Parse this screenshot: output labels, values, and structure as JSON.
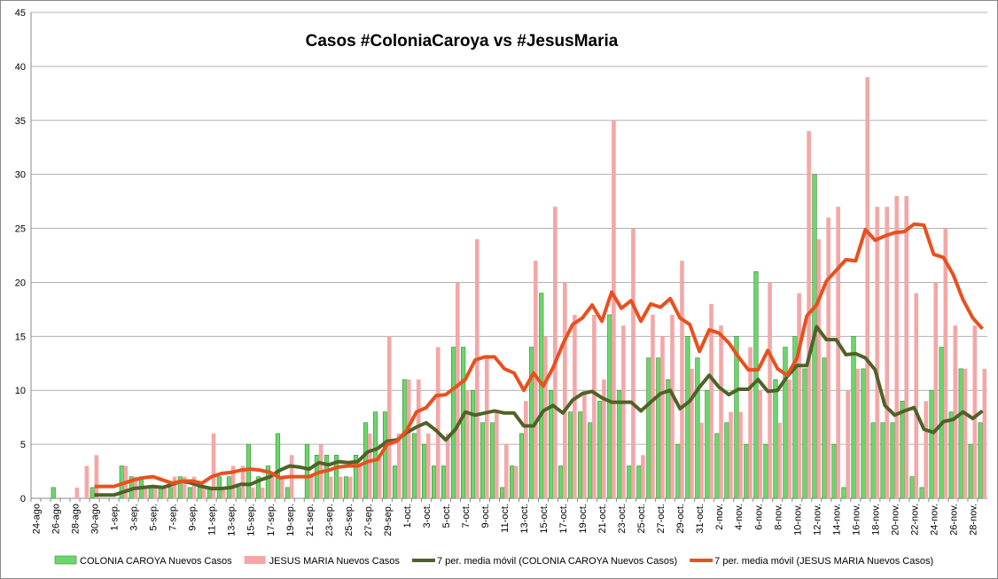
{
  "chart_data": {
    "type": "bar_line",
    "title": "Casos #ColoniaCaroya vs #JesusMaria",
    "categories": [
      "24-ago",
      null,
      "26-ago",
      null,
      "28-ago",
      null,
      "30-ago",
      null,
      "1-sep.",
      null,
      "3-sep.",
      null,
      "5-sep.",
      null,
      "7-sep.",
      null,
      "9-sep.",
      null,
      "11-sep.",
      null,
      "13-sep.",
      null,
      "15-sep.",
      null,
      "17-sep.",
      null,
      "19-sep.",
      null,
      "21-sep.",
      null,
      "23-sep.",
      null,
      "25-sep.",
      null,
      "27-sep.",
      null,
      "29-sep.",
      null,
      "1-oct.",
      null,
      "3-oct.",
      null,
      "5-oct.",
      null,
      "7-oct.",
      null,
      "9-oct.",
      null,
      "11-oct.",
      null,
      "13-oct.",
      null,
      "15-oct.",
      null,
      "17-oct.",
      null,
      "19-oct.",
      null,
      "21-oct.",
      null,
      "23-oct.",
      null,
      "25-oct.",
      null,
      "27-oct.",
      null,
      "29-oct.",
      null,
      "31-oct.",
      null,
      "2-nov.",
      null,
      "4-nov.",
      null,
      "6-nov.",
      null,
      "8-nov.",
      null,
      "10-nov.",
      null,
      "12-nov.",
      null,
      "14-nov.",
      null,
      "16-nov.",
      null,
      "18-nov.",
      null,
      "20-nov.",
      null,
      "22-nov.",
      null,
      "24-nov.",
      null,
      "26-nov.",
      null,
      "28-nov.",
      null
    ],
    "series": [
      {
        "name": "COLONIA CAROYA Nuevos Casos",
        "kind": "bar",
        "color": "#6cd66c",
        "values": [
          0,
          0,
          1,
          0,
          0,
          0,
          1,
          0,
          0,
          3,
          2,
          2,
          1,
          1,
          1,
          2,
          1,
          1,
          1,
          2,
          2,
          1,
          5,
          2,
          3,
          6,
          1,
          0,
          5,
          4,
          4,
          4,
          2,
          4,
          7,
          8,
          8,
          3,
          11,
          6,
          5,
          3,
          3,
          14,
          14,
          10,
          7,
          7,
          1,
          3,
          6,
          14,
          19,
          10,
          3,
          8,
          8,
          7,
          9,
          17,
          10,
          3,
          3,
          13,
          13,
          11,
          5,
          15,
          13,
          10,
          6,
          7,
          15,
          5,
          21,
          5,
          11,
          14,
          15,
          12,
          30,
          13,
          5,
          1,
          15,
          12,
          7,
          7,
          7,
          9,
          2,
          1,
          10,
          14,
          8,
          12,
          5,
          7
        ]
      },
      {
        "name": "JESUS MARIA Nuevos Casos",
        "kind": "bar",
        "color": "#f4a7a7",
        "values": [
          0,
          0,
          0,
          0,
          1,
          3,
          4,
          0,
          0,
          3,
          2,
          1,
          1,
          1,
          2,
          2,
          2,
          1,
          6,
          1,
          3,
          3,
          1,
          1,
          2,
          2,
          4,
          0,
          2,
          5,
          2,
          2,
          2,
          3,
          6,
          4,
          15,
          6,
          11,
          11,
          6,
          14,
          6,
          20,
          10,
          24,
          13,
          8,
          5,
          3,
          9,
          22,
          15,
          27,
          20,
          17,
          10,
          17,
          11,
          35,
          16,
          25,
          4,
          17,
          15,
          17,
          22,
          12,
          7,
          18,
          16,
          8,
          8,
          14,
          10,
          20,
          7,
          11,
          19,
          34,
          24,
          26,
          27,
          10,
          12,
          39,
          27,
          27,
          28,
          28,
          19,
          9,
          20,
          25,
          16,
          12,
          16,
          12
        ]
      },
      {
        "name": "7 per. media móvil (COLONIA CAROYA Nuevos Casos)",
        "kind": "line",
        "color": "#4f6228",
        "values": [
          null,
          null,
          null,
          null,
          null,
          null,
          0.3,
          0.3,
          0.3,
          0.6,
          0.9,
          1.0,
          1.1,
          1.0,
          1.3,
          1.6,
          1.4,
          1.1,
          0.9,
          0.9,
          1.0,
          1.3,
          1.3,
          1.7,
          2.0,
          2.6,
          3.0,
          2.9,
          2.7,
          3.3,
          3.1,
          3.4,
          3.3,
          3.4,
          4.3,
          4.6,
          5.3,
          5.4,
          6.1,
          6.6,
          7.0,
          6.3,
          5.4,
          6.4,
          8.0,
          7.7,
          7.9,
          8.1,
          7.9,
          7.9,
          6.7,
          6.7,
          8.1,
          8.6,
          7.9,
          9.1,
          9.7,
          9.9,
          9.3,
          8.9,
          8.9,
          8.9,
          8.1,
          8.9,
          9.7,
          10.0,
          8.3,
          9.0,
          10.3,
          11.4,
          10.3,
          9.6,
          10.1,
          10.1,
          11.0,
          9.9,
          10.0,
          11.3,
          12.3,
          12.3,
          15.9,
          14.7,
          14.7,
          13.3,
          13.4,
          13.0,
          11.9,
          8.6,
          7.7,
          8.1,
          8.4,
          6.4,
          6.1,
          7.1,
          7.3,
          8.0,
          7.4,
          8.1
        ]
      },
      {
        "name": "7 per. media móvil (JESUS MARIA Nuevos Casos)",
        "kind": "line",
        "color": "#e8501e",
        "values": [
          null,
          null,
          null,
          null,
          null,
          null,
          1.1,
          1.1,
          1.1,
          1.4,
          1.7,
          1.9,
          2.0,
          1.7,
          1.4,
          1.6,
          1.6,
          1.4,
          2.0,
          2.3,
          2.4,
          2.6,
          2.7,
          2.6,
          2.4,
          1.9,
          2.0,
          2.0,
          2.0,
          2.4,
          2.6,
          2.9,
          3.0,
          3.0,
          3.4,
          3.6,
          5.0,
          5.3,
          6.3,
          8.0,
          8.4,
          9.5,
          9.6,
          10.3,
          11.0,
          12.8,
          13.1,
          13.1,
          12.0,
          11.6,
          10.0,
          11.6,
          10.4,
          12.1,
          14.3,
          16.1,
          16.7,
          17.9,
          16.4,
          19.1,
          17.6,
          18.3,
          16.4,
          18.0,
          17.7,
          18.5,
          16.7,
          16.1,
          13.6,
          15.6,
          15.3,
          14.4,
          13.1,
          11.9,
          11.9,
          13.7,
          12.0,
          11.4,
          13.0,
          16.9,
          17.9,
          20.1,
          21.1,
          22.1,
          22.0,
          24.9,
          23.9,
          24.3,
          24.6,
          24.7,
          25.4,
          25.3,
          22.6,
          22.3,
          20.7,
          18.4,
          16.7,
          15.7
        ]
      }
    ],
    "ylim": [
      0,
      45
    ],
    "yticks": [
      0,
      5,
      10,
      15,
      20,
      25,
      30,
      35,
      40,
      45
    ],
    "grid": true,
    "legend": "bottom"
  }
}
